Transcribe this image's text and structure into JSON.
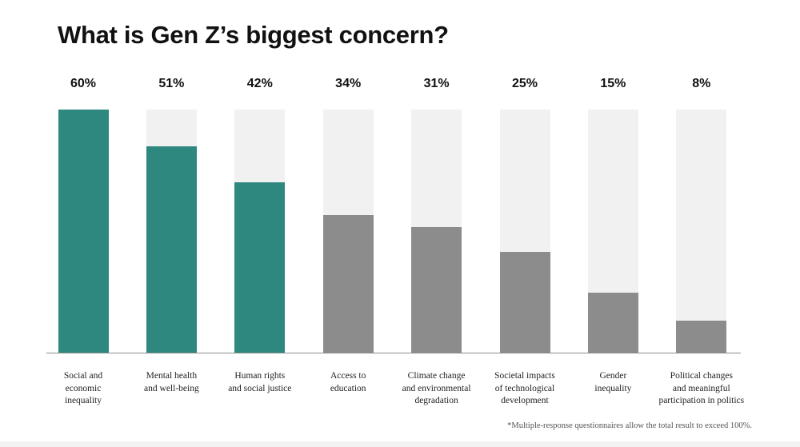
{
  "colors": {
    "highlight": "#2e8880",
    "muted": "#8c8c8c",
    "track": "#f1f1f1"
  },
  "chart_data": {
    "type": "bar",
    "title": "What is Gen Z’s biggest concern?",
    "xlabel": "",
    "ylabel": "",
    "ylim": [
      0,
      60
    ],
    "categories": [
      "Social and economic inequality",
      "Mental health and well-being",
      "Human rights and social justice",
      "Access to education",
      "Climate change and environmental degradation",
      "Societal impacts of technological development",
      "Gender inequality",
      "Political changes and meaningful participation in politics"
    ],
    "category_lines": [
      [
        "Social and",
        "economic",
        "inequality"
      ],
      [
        "Mental health",
        "and well-being"
      ],
      [
        "Human rights",
        "and social justice"
      ],
      [
        "Access to",
        "education"
      ],
      [
        "Climate change",
        "and environmental",
        "degradation"
      ],
      [
        "Societal impacts",
        "of technological",
        "development"
      ],
      [
        "Gender",
        "inequality"
      ],
      [
        "Political changes",
        "and meaningful",
        "participation in politics"
      ]
    ],
    "values": [
      60,
      51,
      42,
      34,
      31,
      25,
      15,
      8
    ],
    "value_labels": [
      "60%",
      "51%",
      "42%",
      "34%",
      "31%",
      "25%",
      "15%",
      "8%"
    ],
    "highlighted": [
      true,
      true,
      true,
      false,
      false,
      false,
      false,
      false
    ],
    "footnote": "*Multiple-response questionnaires allow the total result to exceed 100%."
  }
}
